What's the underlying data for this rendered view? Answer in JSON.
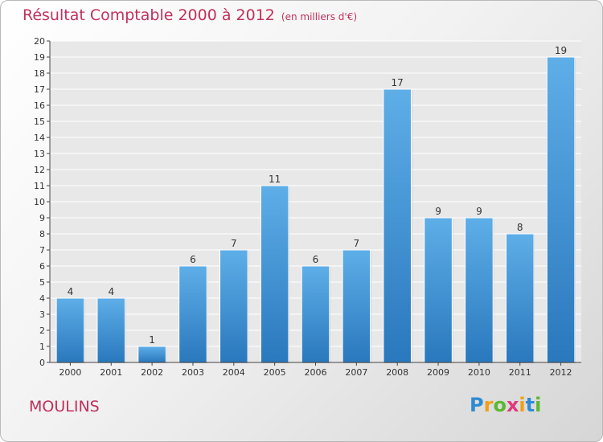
{
  "title": "Résultat Comptable 2000 à 2012",
  "unit": "(en milliers d'€)",
  "town": "MOULINS",
  "logo": {
    "letters": [
      {
        "ch": "P",
        "color": "#2e8bd2"
      },
      {
        "ch": "r",
        "color": "#f0a018"
      },
      {
        "ch": "o",
        "color": "#5ab833"
      },
      {
        "ch": "x",
        "color": "#e03a7a"
      },
      {
        "ch": "i",
        "color": "#f0a018"
      },
      {
        "ch": "t",
        "color": "#2e8bd2"
      },
      {
        "ch": "i",
        "color": "#5ab833"
      }
    ]
  },
  "colors": {
    "accent": "#c0305a",
    "bar_light": "#5eaee8",
    "bar_dark": "#2a78bd"
  },
  "chart_data": {
    "type": "bar",
    "title": "Résultat Comptable 2000 à 2012",
    "subtitle": "(en milliers d'€)",
    "xlabel": "",
    "ylabel": "",
    "categories": [
      "2000",
      "2001",
      "2002",
      "2003",
      "2004",
      "2005",
      "2006",
      "2007",
      "2008",
      "2009",
      "2010",
      "2011",
      "2012"
    ],
    "values": [
      4,
      4,
      1,
      6,
      7,
      11,
      6,
      7,
      17,
      9,
      9,
      8,
      19
    ],
    "ylim": [
      0,
      20
    ],
    "yticks": [
      0,
      1,
      2,
      3,
      4,
      5,
      6,
      7,
      8,
      9,
      10,
      11,
      12,
      13,
      14,
      15,
      16,
      17,
      18,
      19,
      20
    ],
    "grid": true
  }
}
